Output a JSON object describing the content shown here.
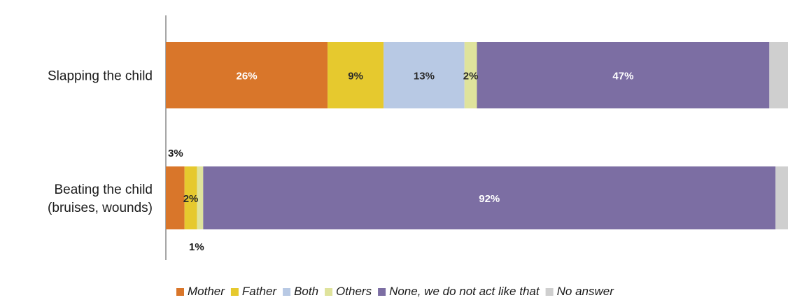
{
  "chart_data": {
    "type": "bar",
    "orientation": "horizontal",
    "stacked": true,
    "categories": [
      "Slapping the child",
      "Beating the child\n(bruises, wounds)"
    ],
    "series": [
      {
        "name": "Mother",
        "color": "#d9762a",
        "values": [
          26,
          3
        ],
        "labels": [
          "26%",
          "3%"
        ]
      },
      {
        "name": "Father",
        "color": "#e6c92e",
        "values": [
          9,
          2
        ],
        "labels": [
          "9%",
          "2%"
        ]
      },
      {
        "name": "Both",
        "color": "#b8c9e4",
        "values": [
          13,
          0
        ],
        "labels": [
          "13%",
          ""
        ]
      },
      {
        "name": "Others",
        "color": "#dfe39c",
        "values": [
          2,
          1
        ],
        "labels": [
          "2%",
          "1%"
        ]
      },
      {
        "name": "None, we do not act like that",
        "color": "#7c6ea3",
        "values": [
          47,
          92
        ],
        "labels": [
          "47%",
          "92%"
        ]
      },
      {
        "name": "No answer",
        "color": "#cfcfcf",
        "values": [
          3,
          2
        ],
        "labels": [
          "",
          ""
        ]
      }
    ],
    "xlim": [
      0,
      100
    ],
    "grid": false,
    "legend_position": "bottom"
  }
}
